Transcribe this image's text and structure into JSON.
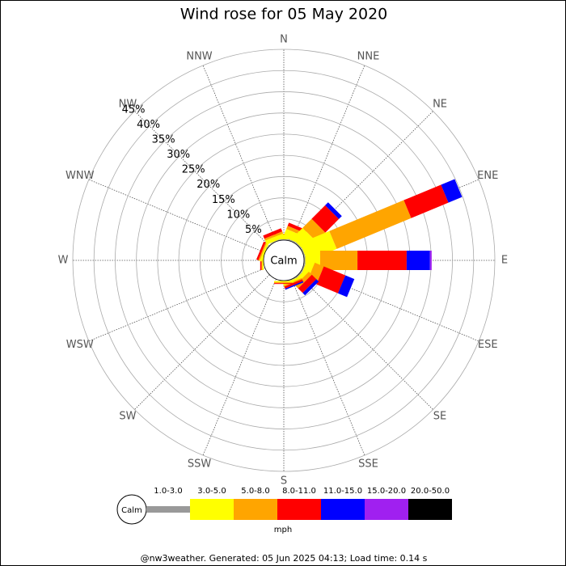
{
  "chart_data": {
    "type": "windrose",
    "title": "Wind rose for 05 May 2020",
    "directions": [
      "N",
      "NNE",
      "NE",
      "ENE",
      "E",
      "ESE",
      "SE",
      "SSE",
      "S",
      "SSW",
      "SW",
      "WSW",
      "W",
      "WNW",
      "NW",
      "NNW"
    ],
    "calm_label": "Calm",
    "ylim": [
      0,
      45
    ],
    "yticks": [
      {
        "value": 5,
        "label": "5%"
      },
      {
        "value": 10,
        "label": "10%"
      },
      {
        "value": 15,
        "label": "15%"
      },
      {
        "value": 20,
        "label": "20%"
      },
      {
        "value": 25,
        "label": "25%"
      },
      {
        "value": 30,
        "label": "30%"
      },
      {
        "value": 35,
        "label": "35%"
      },
      {
        "value": 40,
        "label": "40%"
      },
      {
        "value": 45,
        "label": "45%"
      }
    ],
    "grid": true,
    "unit": "mph",
    "series": [
      {
        "name": "1.0-3.0",
        "color": "#999999",
        "values": [
          0.2,
          0.3,
          0.3,
          0.3,
          0.3,
          0.3,
          0.3,
          0.2,
          0.1,
          0,
          0,
          0,
          0,
          0,
          0.2,
          0.2
        ]
      },
      {
        "name": "3.0-5.0",
        "color": "#ffff00",
        "values": [
          0.5,
          2,
          3.5,
          7.5,
          3.5,
          1.9,
          1,
          0.5,
          0.3,
          0,
          0,
          0,
          0.3,
          0.5,
          0,
          1
        ]
      },
      {
        "name": "5.0-8.0",
        "color": "#ffa500",
        "values": [
          0.5,
          0.8,
          3,
          19,
          8.8,
          2.3,
          1,
          0.3,
          0.2,
          0,
          0,
          0,
          0.2,
          0.3,
          0,
          0.5
        ]
      },
      {
        "name": "8.0-11.0",
        "color": "#ff0000",
        "values": [
          0.3,
          0.8,
          4.5,
          9.5,
          11.6,
          5.5,
          1.5,
          0.5,
          0.2,
          0,
          0,
          0,
          0.3,
          0.5,
          0,
          0.8
        ]
      },
      {
        "name": "11.0-15.0",
        "color": "#0000ff",
        "values": [
          0,
          0,
          1,
          3.5,
          5.5,
          2.3,
          0.8,
          0.3,
          0,
          0,
          0,
          0,
          0,
          0,
          0,
          0
        ]
      },
      {
        "name": "15.0-20.0",
        "color": "#a020f0",
        "values": [
          0,
          0,
          0,
          0,
          0.4,
          0,
          0,
          0,
          0,
          0,
          0,
          0,
          0,
          0,
          0,
          0
        ]
      },
      {
        "name": "20.0-50.0",
        "color": "#000000",
        "values": [
          0,
          0,
          0,
          0,
          0,
          0,
          0,
          0,
          0,
          0,
          0,
          0,
          0,
          0,
          0,
          0
        ]
      }
    ],
    "footer": "@nw3weather. Generated: 05 Jun 2025 04:13; Load time: 0.14 s"
  }
}
